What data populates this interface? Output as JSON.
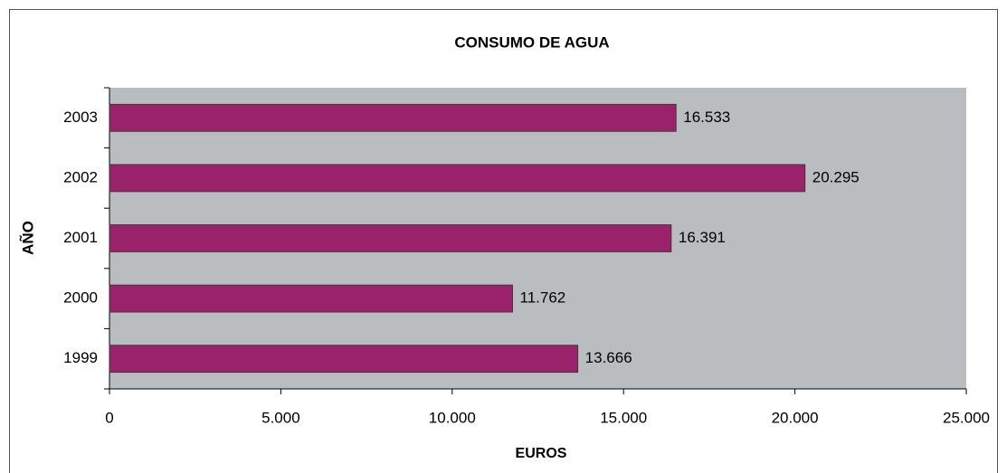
{
  "chart_data": {
    "type": "bar",
    "orientation": "horizontal",
    "title": "CONSUMO DE AGUA",
    "x_label": "EUROS",
    "y_label": "AÑO",
    "categories": [
      "1999",
      "2000",
      "2001",
      "2002",
      "2003"
    ],
    "values": [
      13666,
      11762,
      16391,
      20295,
      16533
    ],
    "value_labels": [
      "13.666",
      "11.762",
      "16.391",
      "20.295",
      "16.533"
    ],
    "color": "#99226a",
    "xlim": [
      0,
      25000
    ],
    "xticks": [
      0,
      {
        "value": 5000,
        "label": "5.000"
      },
      {
        "value": 10000,
        "label": "10.000"
      },
      {
        "value": 15000,
        "label": "15.000"
      },
      {
        "value": 20000,
        "label": "20.000"
      },
      {
        "value": 25000,
        "label": "25.000"
      }
    ],
    "grid": false
  }
}
